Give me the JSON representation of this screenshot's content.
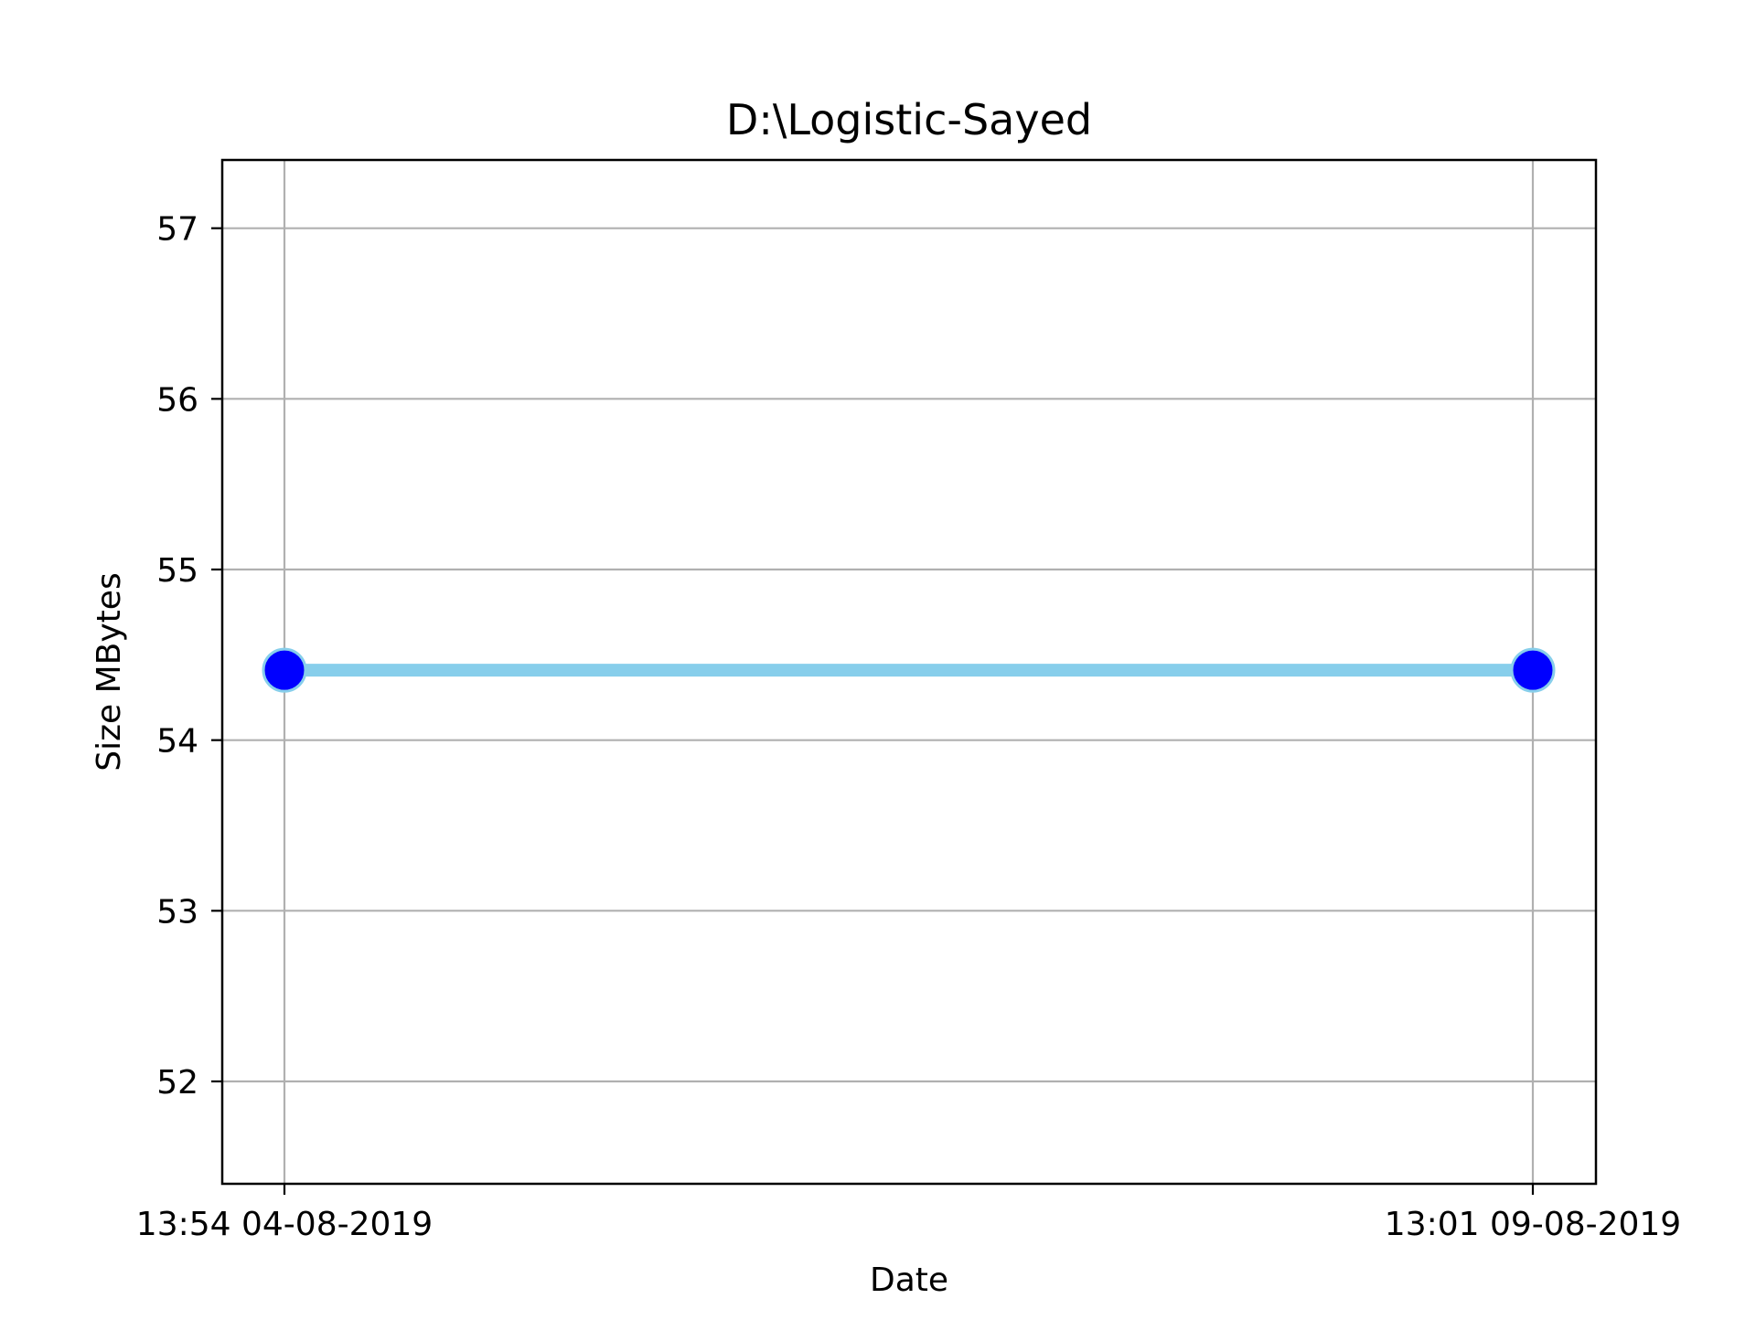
{
  "chart_data": {
    "type": "line",
    "title": "D:\\Logistic-Sayed",
    "xlabel": "Date",
    "ylabel": "Size MBytes",
    "x_ticks": [
      "13:54 04-08-2019",
      "13:01 09-08-2019"
    ],
    "y_ticks": [
      52,
      53,
      54,
      55,
      56,
      57
    ],
    "ylim": [
      51.4,
      57.4
    ],
    "grid": true,
    "series": [
      {
        "points": [
          {
            "x": "13:54 04-08-2019",
            "y": 54.41
          },
          {
            "x": "13:01 09-08-2019",
            "y": 54.41
          }
        ],
        "line_color": "#87ceeb",
        "marker_color": "#0000ff",
        "marker_edge_color": "#87ceeb"
      }
    ],
    "grid_color": "#b0b0b0",
    "axes_color": "#000000"
  }
}
